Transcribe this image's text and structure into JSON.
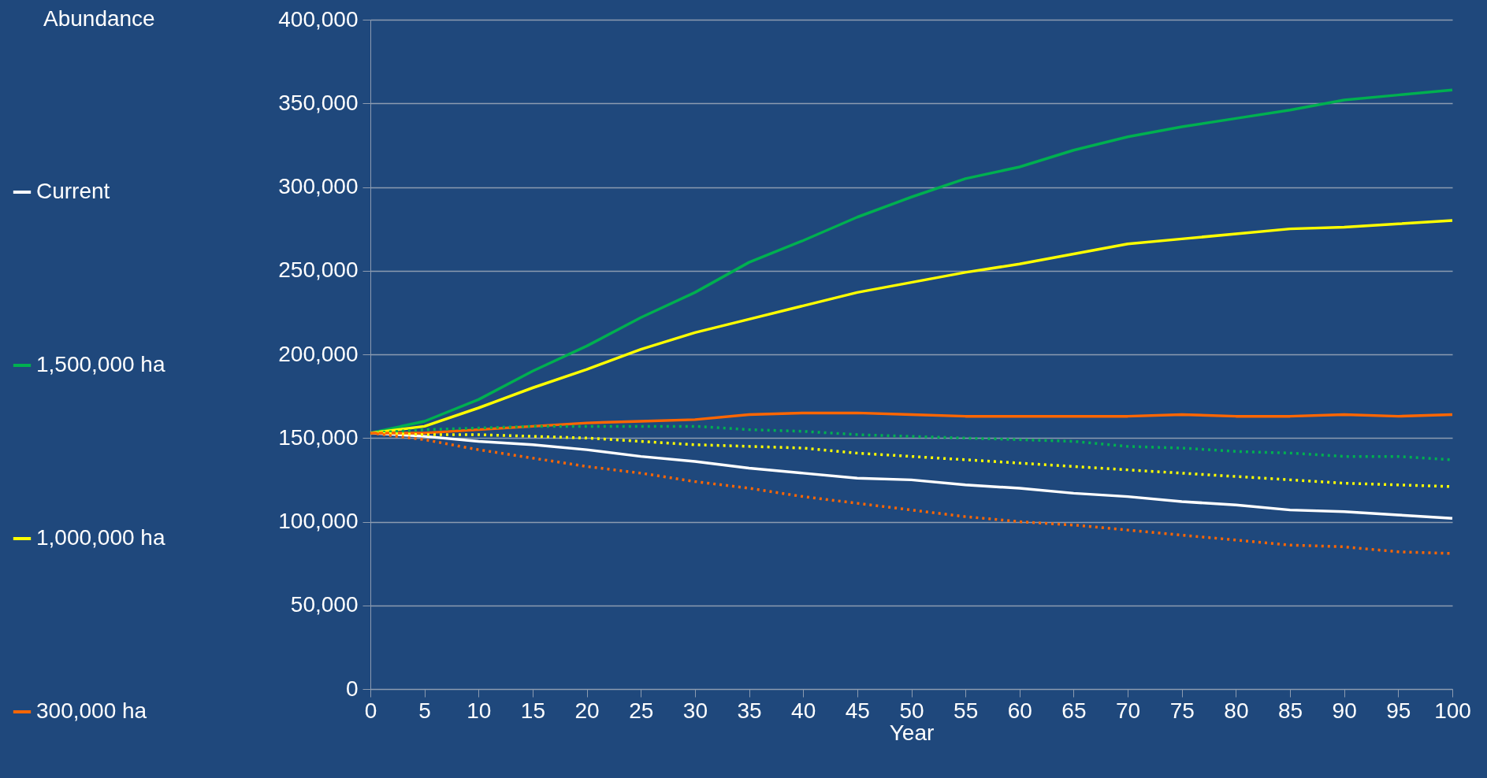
{
  "chart_data": {
    "type": "line",
    "xlabel": "Year",
    "x": [
      0,
      5,
      10,
      15,
      20,
      25,
      30,
      35,
      40,
      45,
      50,
      55,
      60,
      65,
      70,
      75,
      80,
      85,
      90,
      95,
      100
    ],
    "series": [
      {
        "name": "Current",
        "color": "#ffffff",
        "values": [
          153000,
          151000,
          148000,
          146000,
          143000,
          139000,
          136000,
          132000,
          129000,
          126000,
          125000,
          122000,
          120000,
          117000,
          115000,
          112000,
          110000,
          107000,
          106000,
          104000,
          102000
        ]
      },
      {
        "name": "1,500,000 ha",
        "color": "#00b050",
        "values": [
          153000,
          160000,
          173000,
          190000,
          205000,
          222000,
          237000,
          255000,
          268000,
          282000,
          294000,
          305000,
          312000,
          322000,
          330000,
          336000,
          341000,
          346000,
          352000,
          355000,
          358000
        ]
      },
      {
        "name": "1,000,000 ha",
        "color": "#ffff00",
        "values": [
          153000,
          157000,
          168000,
          180000,
          191000,
          203000,
          213000,
          221000,
          229000,
          237000,
          243000,
          249000,
          254000,
          260000,
          266000,
          269000,
          272000,
          275000,
          276000,
          278000,
          280000
        ]
      },
      {
        "name": "300,000 ha",
        "color": "#ff6600",
        "values": [
          153000,
          153000,
          155000,
          157000,
          159000,
          160000,
          161000,
          164000,
          165000,
          165000,
          164000,
          163000,
          163000,
          163000,
          163000,
          164000,
          163000,
          163000,
          164000,
          163000,
          164000
        ]
      },
      {
        "color": "#00b050",
        "line_style": "dotted",
        "values": [
          153000,
          155000,
          156000,
          157000,
          157000,
          157000,
          157000,
          155000,
          154000,
          152000,
          151000,
          150000,
          149000,
          148000,
          145000,
          144000,
          142000,
          141000,
          139000,
          139000,
          137000
        ]
      },
      {
        "color": "#ffff00",
        "line_style": "dotted",
        "values": [
          153000,
          152000,
          152000,
          151000,
          150000,
          148000,
          146000,
          145000,
          144000,
          141000,
          139000,
          137000,
          135000,
          133000,
          131000,
          129000,
          127000,
          125000,
          123000,
          122000,
          121000
        ]
      },
      {
        "color": "#ff6600",
        "line_style": "dotted",
        "values": [
          153000,
          149000,
          143000,
          138000,
          133000,
          129000,
          124000,
          120000,
          115000,
          111000,
          107000,
          103000,
          100000,
          98000,
          95000,
          92000,
          89000,
          86000,
          85000,
          82000,
          81000
        ]
      }
    ],
    "xlim": [
      0,
      100
    ],
    "xticks": [
      0,
      5,
      10,
      15,
      20,
      25,
      30,
      35,
      40,
      45,
      50,
      55,
      60,
      65,
      70,
      75,
      80,
      85,
      90,
      95,
      100
    ],
    "ylim": [
      0,
      400000
    ],
    "yticks": [
      0,
      {
        "value": 50000,
        "label": "50,000"
      },
      {
        "value": 100000,
        "label": "100,000"
      },
      {
        "value": 150000,
        "label": "150,000"
      },
      {
        "value": 200000,
        "label": "200,000"
      },
      {
        "value": 250000,
        "label": "250,000"
      },
      {
        "value": 300000,
        "label": "300,000"
      },
      {
        "value": 350000,
        "label": "350,000"
      },
      {
        "value": 400000,
        "label": "400,000"
      }
    ],
    "annotations": [
      "Abundance"
    ],
    "grid": "y",
    "legend": "left",
    "line_style": "solid",
    "marker": "none"
  }
}
